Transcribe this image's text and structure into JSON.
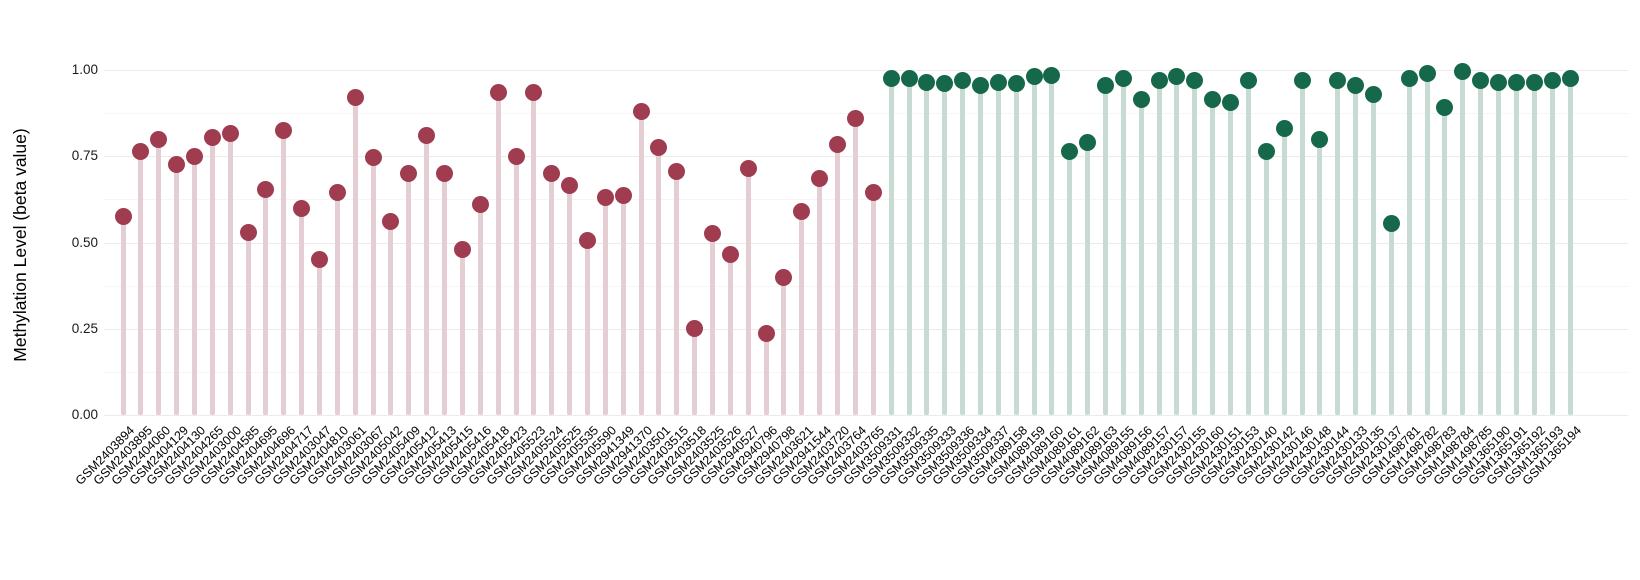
{
  "chart_data": {
    "type": "lollipop",
    "title": "",
    "xlabel": "",
    "ylabel": "Methylation Level (beta value)",
    "ylim": [
      0,
      1.05
    ],
    "yticks": [
      0.0,
      0.25,
      0.5,
      0.75,
      1.0
    ],
    "grid": "on",
    "legend": "none",
    "groups": {
      "group1": {
        "dot_color": "#a03c50",
        "stem_color": "#e5cdd4"
      },
      "group2": {
        "dot_color": "#15694a",
        "stem_color": "#c8dbd2"
      }
    },
    "samples": [
      {
        "id": "GSM2403894",
        "value": 0.575,
        "group": "group1"
      },
      {
        "id": "GSM2403895",
        "value": 0.765,
        "group": "group1"
      },
      {
        "id": "GSM2404060",
        "value": 0.8,
        "group": "group1"
      },
      {
        "id": "GSM2404129",
        "value": 0.725,
        "group": "group1"
      },
      {
        "id": "GSM2404130",
        "value": 0.75,
        "group": "group1"
      },
      {
        "id": "GSM2404265",
        "value": 0.805,
        "group": "group1"
      },
      {
        "id": "GSM2403000",
        "value": 0.815,
        "group": "group1"
      },
      {
        "id": "GSM2404585",
        "value": 0.53,
        "group": "group1"
      },
      {
        "id": "GSM2404695",
        "value": 0.655,
        "group": "group1"
      },
      {
        "id": "GSM2404696",
        "value": 0.825,
        "group": "group1"
      },
      {
        "id": "GSM2404717",
        "value": 0.6,
        "group": "group1"
      },
      {
        "id": "GSM2403047",
        "value": 0.45,
        "group": "group1"
      },
      {
        "id": "GSM2404810",
        "value": 0.645,
        "group": "group1"
      },
      {
        "id": "GSM2403061",
        "value": 0.92,
        "group": "group1"
      },
      {
        "id": "GSM2403067",
        "value": 0.745,
        "group": "group1"
      },
      {
        "id": "GSM2405042",
        "value": 0.56,
        "group": "group1"
      },
      {
        "id": "GSM2405409",
        "value": 0.7,
        "group": "group1"
      },
      {
        "id": "GSM2405412",
        "value": 0.81,
        "group": "group1"
      },
      {
        "id": "GSM2405413",
        "value": 0.7,
        "group": "group1"
      },
      {
        "id": "GSM2405415",
        "value": 0.48,
        "group": "group1"
      },
      {
        "id": "GSM2405416",
        "value": 0.61,
        "group": "group1"
      },
      {
        "id": "GSM2405418",
        "value": 0.935,
        "group": "group1"
      },
      {
        "id": "GSM2405423",
        "value": 0.75,
        "group": "group1"
      },
      {
        "id": "GSM2405523",
        "value": 0.935,
        "group": "group1"
      },
      {
        "id": "GSM2405524",
        "value": 0.7,
        "group": "group1"
      },
      {
        "id": "GSM2405525",
        "value": 0.665,
        "group": "group1"
      },
      {
        "id": "GSM2405535",
        "value": 0.505,
        "group": "group1"
      },
      {
        "id": "GSM2405590",
        "value": 0.63,
        "group": "group1"
      },
      {
        "id": "GSM2941349",
        "value": 0.635,
        "group": "group1"
      },
      {
        "id": "GSM2941370",
        "value": 0.88,
        "group": "group1"
      },
      {
        "id": "GSM2403501",
        "value": 0.775,
        "group": "group1"
      },
      {
        "id": "GSM2403515",
        "value": 0.705,
        "group": "group1"
      },
      {
        "id": "GSM2403518",
        "value": 0.25,
        "group": "group1"
      },
      {
        "id": "GSM2403525",
        "value": 0.525,
        "group": "group1"
      },
      {
        "id": "GSM2403526",
        "value": 0.465,
        "group": "group1"
      },
      {
        "id": "GSM2940527",
        "value": 0.715,
        "group": "group1"
      },
      {
        "id": "GSM2940796",
        "value": 0.235,
        "group": "group1"
      },
      {
        "id": "GSM2940798",
        "value": 0.4,
        "group": "group1"
      },
      {
        "id": "GSM2403621",
        "value": 0.59,
        "group": "group1"
      },
      {
        "id": "GSM2941544",
        "value": 0.685,
        "group": "group1"
      },
      {
        "id": "GSM2403720",
        "value": 0.785,
        "group": "group1"
      },
      {
        "id": "GSM2403764",
        "value": 0.86,
        "group": "group1"
      },
      {
        "id": "GSM2403765",
        "value": 0.645,
        "group": "group1"
      },
      {
        "id": "GSM3509331",
        "value": 0.975,
        "group": "group2"
      },
      {
        "id": "GSM3509332",
        "value": 0.975,
        "group": "group2"
      },
      {
        "id": "GSM3509335",
        "value": 0.965,
        "group": "group2"
      },
      {
        "id": "GSM3509333",
        "value": 0.96,
        "group": "group2"
      },
      {
        "id": "GSM3509336",
        "value": 0.97,
        "group": "group2"
      },
      {
        "id": "GSM3509334",
        "value": 0.955,
        "group": "group2"
      },
      {
        "id": "GSM3509337",
        "value": 0.965,
        "group": "group2"
      },
      {
        "id": "GSM4089158",
        "value": 0.96,
        "group": "group2"
      },
      {
        "id": "GSM4089159",
        "value": 0.98,
        "group": "group2"
      },
      {
        "id": "GSM4089160",
        "value": 0.985,
        "group": "group2"
      },
      {
        "id": "GSM4089161",
        "value": 0.765,
        "group": "group2"
      },
      {
        "id": "GSM4089162",
        "value": 0.79,
        "group": "group2"
      },
      {
        "id": "GSM4089163",
        "value": 0.955,
        "group": "group2"
      },
      {
        "id": "GSM4089155",
        "value": 0.975,
        "group": "group2"
      },
      {
        "id": "GSM4089156",
        "value": 0.915,
        "group": "group2"
      },
      {
        "id": "GSM4089157",
        "value": 0.97,
        "group": "group2"
      },
      {
        "id": "GSM2430157",
        "value": 0.98,
        "group": "group2"
      },
      {
        "id": "GSM2430155",
        "value": 0.97,
        "group": "group2"
      },
      {
        "id": "GSM2430160",
        "value": 0.915,
        "group": "group2"
      },
      {
        "id": "GSM2430151",
        "value": 0.905,
        "group": "group2"
      },
      {
        "id": "GSM2430153",
        "value": 0.97,
        "group": "group2"
      },
      {
        "id": "GSM2430140",
        "value": 0.765,
        "group": "group2"
      },
      {
        "id": "GSM2430142",
        "value": 0.83,
        "group": "group2"
      },
      {
        "id": "GSM2430146",
        "value": 0.97,
        "group": "group2"
      },
      {
        "id": "GSM2430148",
        "value": 0.8,
        "group": "group2"
      },
      {
        "id": "GSM2430144",
        "value": 0.97,
        "group": "group2"
      },
      {
        "id": "GSM2430133",
        "value": 0.955,
        "group": "group2"
      },
      {
        "id": "GSM2430135",
        "value": 0.93,
        "group": "group2"
      },
      {
        "id": "GSM2430137",
        "value": 0.555,
        "group": "group2"
      },
      {
        "id": "GSM1498781",
        "value": 0.975,
        "group": "group2"
      },
      {
        "id": "GSM1498782",
        "value": 0.99,
        "group": "group2"
      },
      {
        "id": "GSM1498783",
        "value": 0.89,
        "group": "group2"
      },
      {
        "id": "GSM1498784",
        "value": 0.995,
        "group": "group2"
      },
      {
        "id": "GSM1498785",
        "value": 0.97,
        "group": "group2"
      },
      {
        "id": "GSM1365190",
        "value": 0.965,
        "group": "group2"
      },
      {
        "id": "GSM1365191",
        "value": 0.965,
        "group": "group2"
      },
      {
        "id": "GSM1365192",
        "value": 0.965,
        "group": "group2"
      },
      {
        "id": "GSM1365193",
        "value": 0.97,
        "group": "group2"
      },
      {
        "id": "GSM1365194",
        "value": 0.975,
        "group": "group2"
      }
    ]
  }
}
